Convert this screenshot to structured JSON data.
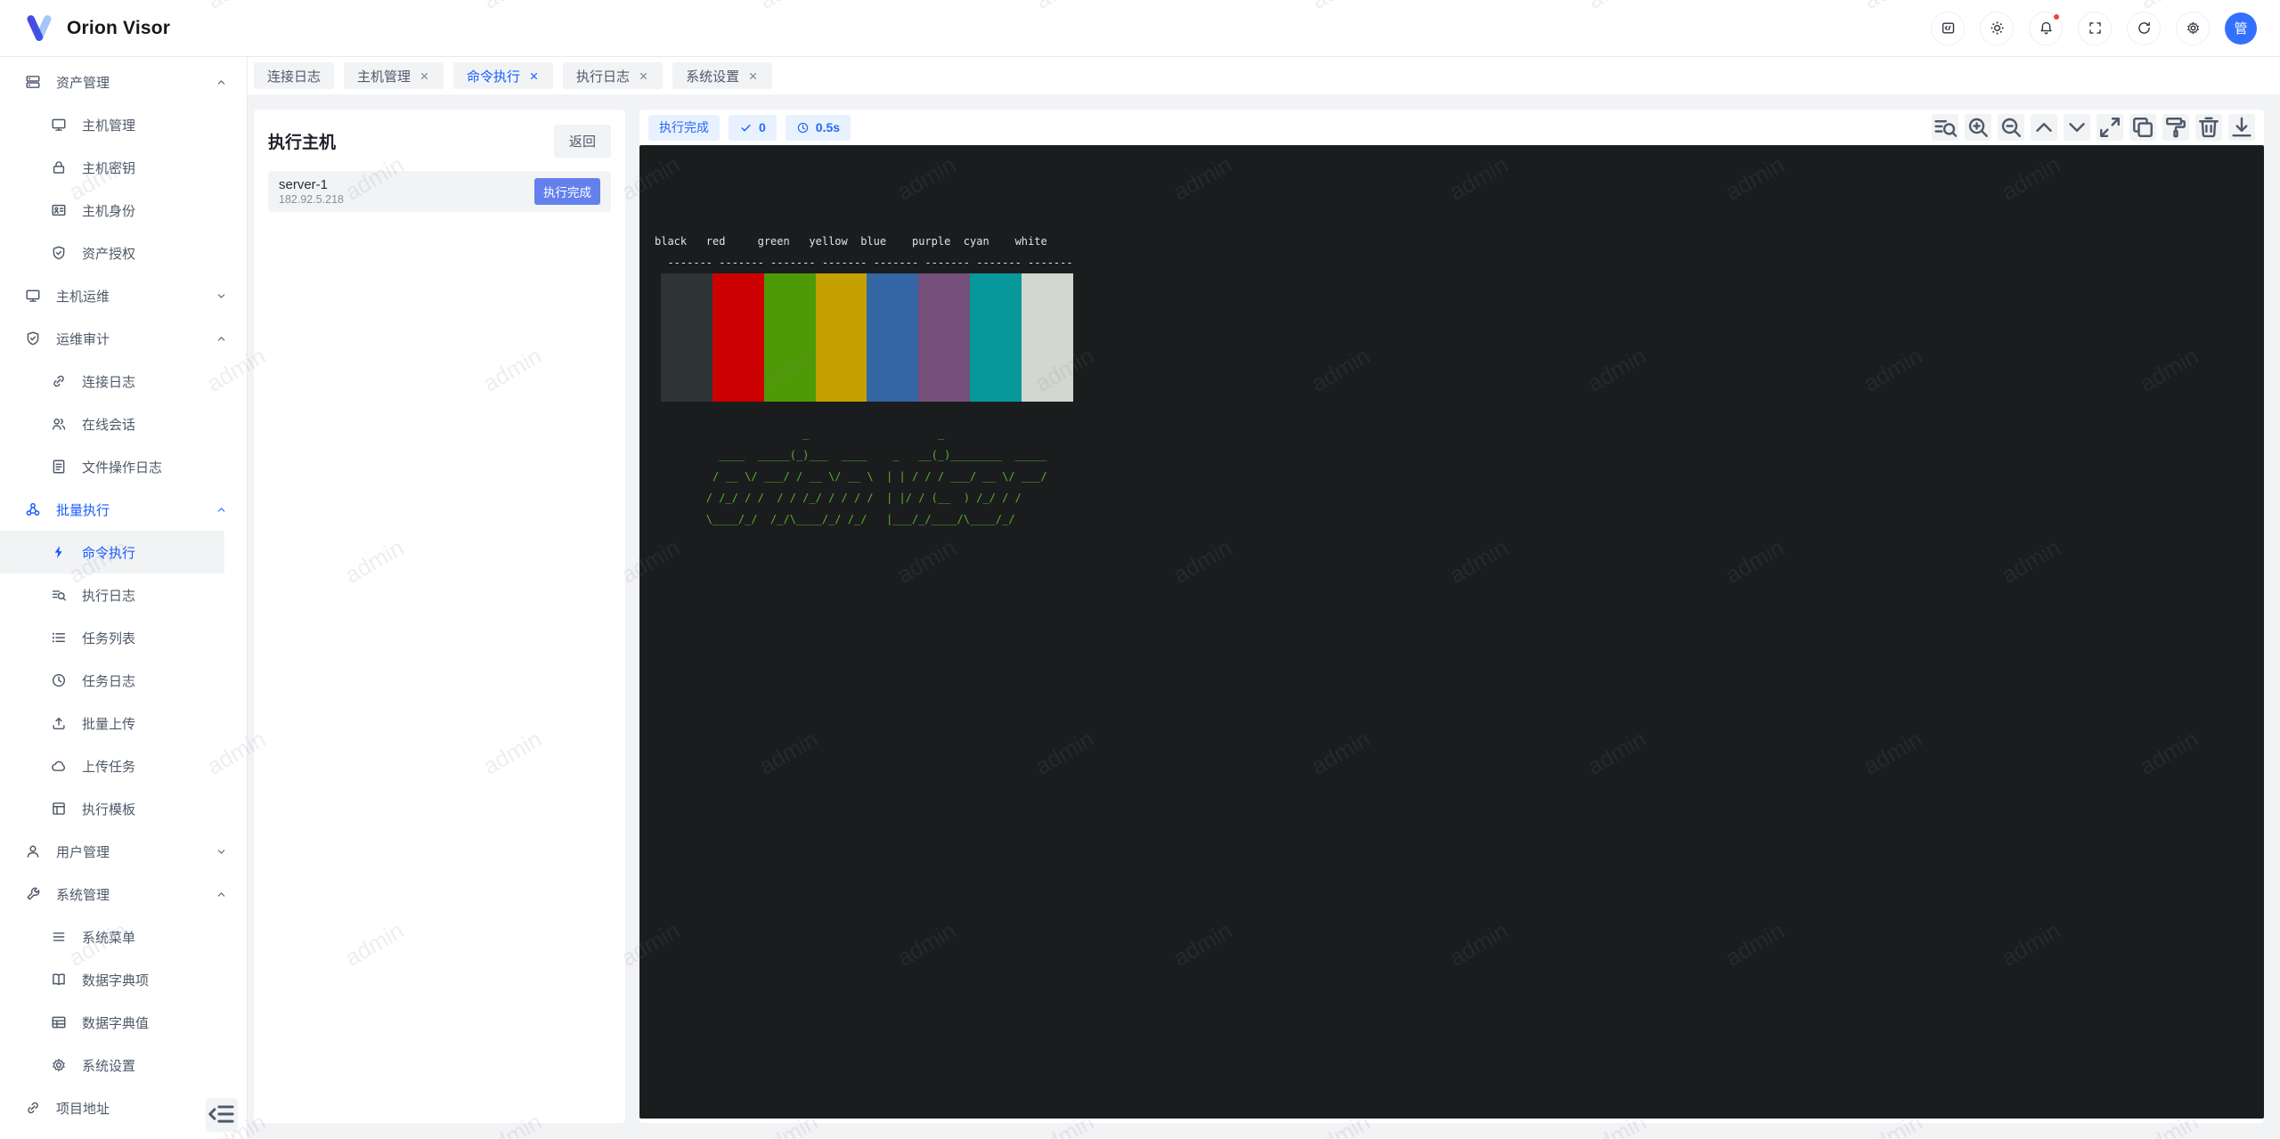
{
  "app": {
    "name": "Orion Visor"
  },
  "header": {
    "actions": [
      {
        "name": "api-code-button",
        "icon": "code-icon"
      },
      {
        "name": "theme-button",
        "icon": "theme-icon"
      },
      {
        "name": "notifications-button",
        "icon": "bell-icon",
        "badge": true
      },
      {
        "name": "fullscreen-button",
        "icon": "fullscreen-icon"
      },
      {
        "name": "refresh-button",
        "icon": "refresh-icon"
      },
      {
        "name": "settings-button",
        "icon": "settings-icon"
      }
    ],
    "avatar_text": "管",
    "notification_dot_color": "#f53f3f",
    "avatar_color": "#3370ff"
  },
  "tabs": [
    {
      "id": "connect-log",
      "label": "连接日志",
      "closable": false,
      "active": false
    },
    {
      "id": "host-manage",
      "label": "主机管理",
      "closable": true,
      "active": false
    },
    {
      "id": "command-exec",
      "label": "命令执行",
      "closable": true,
      "active": true
    },
    {
      "id": "exec-log",
      "label": "执行日志",
      "closable": true,
      "active": false
    },
    {
      "id": "system-setting",
      "label": "系统设置",
      "closable": true,
      "active": false
    }
  ],
  "sidebar": {
    "items": [
      {
        "id": "asset-manage",
        "label": "资产管理",
        "icon": "server-icon",
        "level": "group",
        "chevron": "up"
      },
      {
        "id": "host-manage",
        "label": "主机管理",
        "icon": "monitor-icon",
        "level": "sub"
      },
      {
        "id": "host-key",
        "label": "主机密钥",
        "icon": "lock-icon",
        "level": "sub"
      },
      {
        "id": "host-identity",
        "label": "主机身份",
        "icon": "id-card-icon",
        "level": "sub"
      },
      {
        "id": "asset-grant",
        "label": "资产授权",
        "icon": "shield-check-icon",
        "level": "sub"
      },
      {
        "id": "host-ops",
        "label": "主机运维",
        "icon": "monitor-icon",
        "level": "group",
        "chevron": "down"
      },
      {
        "id": "ops-audit",
        "label": "运维审计",
        "icon": "shield-check-icon",
        "level": "group",
        "chevron": "up"
      },
      {
        "id": "connect-log",
        "label": "连接日志",
        "icon": "link-icon",
        "level": "sub"
      },
      {
        "id": "online-session",
        "label": "在线会话",
        "icon": "users-icon",
        "level": "sub"
      },
      {
        "id": "file-op-log",
        "label": "文件操作日志",
        "icon": "file-text-icon",
        "level": "sub"
      },
      {
        "id": "batch-exec",
        "label": "批量执行",
        "icon": "cluster-icon",
        "level": "group",
        "chevron": "up",
        "highlight": true
      },
      {
        "id": "command-exec",
        "label": "命令执行",
        "icon": "bolt-icon",
        "level": "sub",
        "active": true
      },
      {
        "id": "exec-log",
        "label": "执行日志",
        "icon": "search-list-icon",
        "level": "sub"
      },
      {
        "id": "task-list",
        "label": "任务列表",
        "icon": "list-icon",
        "level": "sub"
      },
      {
        "id": "task-log",
        "label": "任务日志",
        "icon": "history-icon",
        "level": "sub"
      },
      {
        "id": "batch-upload",
        "label": "批量上传",
        "icon": "upload-icon",
        "level": "sub"
      },
      {
        "id": "upload-task",
        "label": "上传任务",
        "icon": "cloud-icon",
        "level": "sub"
      },
      {
        "id": "exec-template",
        "label": "执行模板",
        "icon": "template-icon",
        "level": "sub"
      },
      {
        "id": "user-manage",
        "label": "用户管理",
        "icon": "user-icon",
        "level": "group",
        "chevron": "down"
      },
      {
        "id": "system-manage",
        "label": "系统管理",
        "icon": "wrench-icon",
        "level": "group",
        "chevron": "up"
      },
      {
        "id": "system-menu",
        "label": "系统菜单",
        "icon": "menu-icon",
        "level": "sub"
      },
      {
        "id": "dict-key",
        "label": "数据字典项",
        "icon": "book-icon",
        "level": "sub"
      },
      {
        "id": "dict-value",
        "label": "数据字典值",
        "icon": "table-icon",
        "level": "sub"
      },
      {
        "id": "system-setting",
        "label": "系统设置",
        "icon": "gear-icon",
        "level": "sub"
      },
      {
        "id": "project-link",
        "label": "项目地址",
        "icon": "link-icon",
        "level": "group"
      }
    ]
  },
  "host_panel": {
    "title": "执行主机",
    "back_label": "返回",
    "hosts": [
      {
        "name": "server-1",
        "address": "182.92.5.218",
        "status_label": "执行完成",
        "status_color": "#6380ed"
      }
    ]
  },
  "terminal": {
    "status": [
      {
        "name": "exec-status-badge",
        "label": "执行完成"
      },
      {
        "name": "exit-code-badge",
        "icon": "check-icon",
        "label": "0",
        "strong": true
      },
      {
        "name": "duration-badge",
        "icon": "clock-icon",
        "label": "0.5s",
        "strong": true
      }
    ],
    "toolbar": [
      "log-search-icon",
      "zoom-in-icon",
      "zoom-out-icon",
      "chevron-up-icon",
      "chevron-down-icon",
      "expand-icon",
      "copy-icon",
      "clear-icon",
      "delete-icon",
      "download-icon"
    ],
    "background": "#1b1c1d",
    "text_color": "#e2e3e5",
    "palette": [
      {
        "name": "black",
        "color": "#2E3436"
      },
      {
        "name": "red",
        "color": "#CC0000"
      },
      {
        "name": "green",
        "color": "#4E9A06"
      },
      {
        "name": "yellow",
        "color": "#C4A000"
      },
      {
        "name": "blue",
        "color": "#3465A4"
      },
      {
        "name": "purple",
        "color": "#75507B"
      },
      {
        "name": "cyan",
        "color": "#06989A"
      },
      {
        "name": "white",
        "color": "#D3D7CF"
      }
    ],
    "column_rule": "-------",
    "ascii_color": "#56b22d",
    "ascii_art": [
      "               _                    _",
      "  ____  _____(_)___  ____    _   __(_)________  _____",
      " / __ \\/ ___/ / __ \\/ __ \\  | | / / / ___/ __ \\/ ___/",
      "/ /_/ / /  / / /_/ / / / /  | |/ / (__  ) /_/ / /",
      "\\____/_/  /_/\\____/_/ /_/   |___/_/____/\\____/_/"
    ]
  },
  "watermark": {
    "text": "admin"
  },
  "colors": {
    "accent": "#165dff",
    "badge_bg": "#e8f2fe",
    "page_bg": "#f2f3f5"
  }
}
